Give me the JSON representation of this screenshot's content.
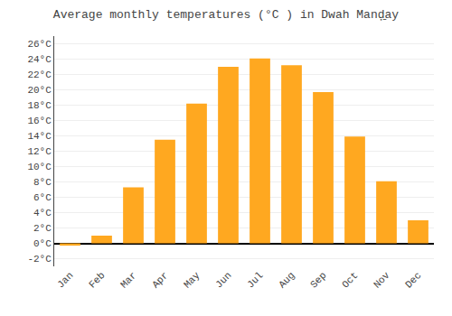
{
  "chart_data": {
    "type": "bar",
    "title": "Average monthly temperatures (°C ) in Dwah Manḑ̱ay",
    "categories": [
      "Jan",
      "Feb",
      "Mar",
      "Apr",
      "May",
      "Jun",
      "Jul",
      "Aug",
      "Sep",
      "Oct",
      "Nov",
      "Dec"
    ],
    "values": [
      -0.3,
      1.0,
      7.3,
      13.5,
      18.2,
      23.0,
      24.1,
      23.2,
      19.7,
      13.9,
      8.1,
      3.0
    ],
    "color": "#FFA820",
    "ylim": [
      -3,
      27
    ],
    "yticks": [
      {
        "value": -2,
        "label": "-2°C"
      },
      {
        "value": 0,
        "label": "0°C"
      },
      {
        "value": 2,
        "label": "2°C"
      },
      {
        "value": 4,
        "label": "4°C"
      },
      {
        "value": 6,
        "label": "6°C"
      },
      {
        "value": 8,
        "label": "8°C"
      },
      {
        "value": 10,
        "label": "10°C"
      },
      {
        "value": 12,
        "label": "12°C"
      },
      {
        "value": 14,
        "label": "14°C"
      },
      {
        "value": 16,
        "label": "16°C"
      },
      {
        "value": 18,
        "label": "18°C"
      },
      {
        "value": 20,
        "label": "20°C"
      },
      {
        "value": 22,
        "label": "22°C"
      },
      {
        "value": 24,
        "label": "24°C"
      },
      {
        "value": 26,
        "label": "26°C"
      }
    ],
    "grid": true
  }
}
